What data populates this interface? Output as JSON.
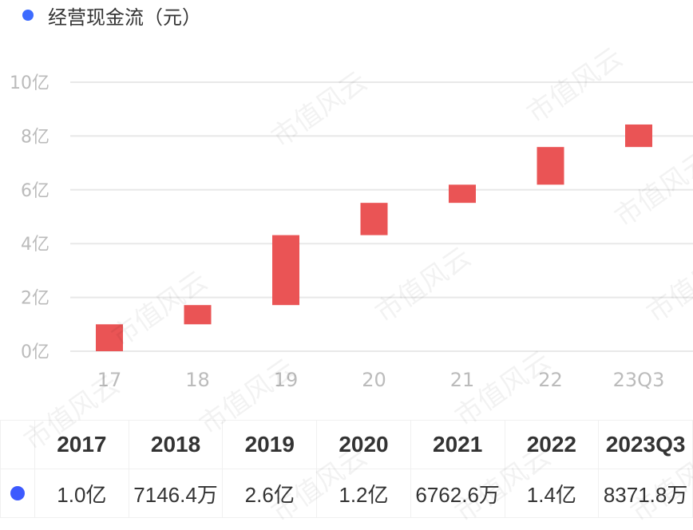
{
  "legend": {
    "label": "经营现金流（元）",
    "color": "#3d6bff"
  },
  "watermark": "市值风云",
  "chart_data": {
    "type": "bar",
    "subtype": "waterfall",
    "categories": [
      "17",
      "18",
      "19",
      "20",
      "21",
      "22",
      "23Q3"
    ],
    "values": [
      1.0,
      0.71464,
      2.6,
      1.2,
      0.67626,
      1.4,
      0.83718
    ],
    "unit": "亿",
    "ylim": [
      0,
      10
    ],
    "yticks": [
      "0亿",
      "2亿",
      "4亿",
      "6亿",
      "8亿",
      "10亿"
    ],
    "grid": true,
    "bar_color": "#ea5455",
    "legend_position": "top-left"
  },
  "table": {
    "headers": [
      "2017",
      "2018",
      "2019",
      "2020",
      "2021",
      "2022",
      "2023Q3"
    ],
    "values": [
      "1.0亿",
      "7146.4万",
      "2.6亿",
      "1.2亿",
      "6762.6万",
      "1.4亿",
      "8371.8万"
    ],
    "dot_color": "#3d5afe"
  }
}
